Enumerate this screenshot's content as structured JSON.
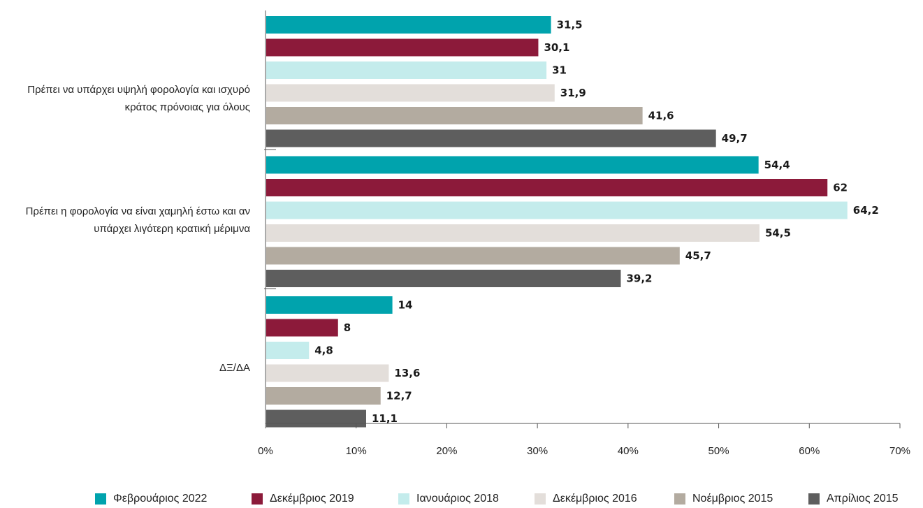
{
  "chart_data": {
    "type": "bar",
    "orientation": "horizontal",
    "categories": [
      "Πρέπει να υπάρχει υψηλή φορολογία και ισχυρό κράτος πρόνοιας για όλους",
      "Πρέπει η φορολογία να είναι χαμηλή έστω και αν υπάρχει λιγότερη κρατική μέριμνα",
      "ΔΞ/ΔΑ"
    ],
    "series": [
      {
        "name": "Φεβρουάριος 2022",
        "color": "#00a3ad",
        "values": [
          31.5,
          54.4,
          14
        ],
        "labels": [
          "31,5",
          "54,4",
          "14"
        ]
      },
      {
        "name": "Δεκέμβριος 2019",
        "color": "#8c1a3a",
        "values": [
          30.1,
          62,
          8
        ],
        "labels": [
          "30,1",
          "62",
          "8"
        ]
      },
      {
        "name": "Ιανουάριος 2018",
        "color": "#c4ecec",
        "values": [
          31,
          64.2,
          4.8
        ],
        "labels": [
          "31",
          "64,2",
          "4,8"
        ]
      },
      {
        "name": "Δεκέμβριος 2016",
        "color": "#e3deda",
        "values": [
          31.9,
          54.5,
          13.6
        ],
        "labels": [
          "31,9",
          "54,5",
          "13,6"
        ]
      },
      {
        "name": "Νοέμβριος 2015",
        "color": "#b3aba0",
        "values": [
          41.6,
          45.7,
          12.7
        ],
        "labels": [
          "41,6",
          "45,7",
          "12,7"
        ]
      },
      {
        "name": "Απρίλιος 2015",
        "color": "#5e5e5e",
        "values": [
          49.7,
          39.2,
          11.1
        ],
        "labels": [
          "49,7",
          "39,2",
          "11,1"
        ]
      }
    ],
    "xlim": [
      0,
      70
    ],
    "xticks": [
      "0%",
      "10%",
      "20%",
      "30%",
      "40%",
      "50%",
      "60%",
      "70%"
    ],
    "grid": false,
    "legend_position": "bottom"
  }
}
